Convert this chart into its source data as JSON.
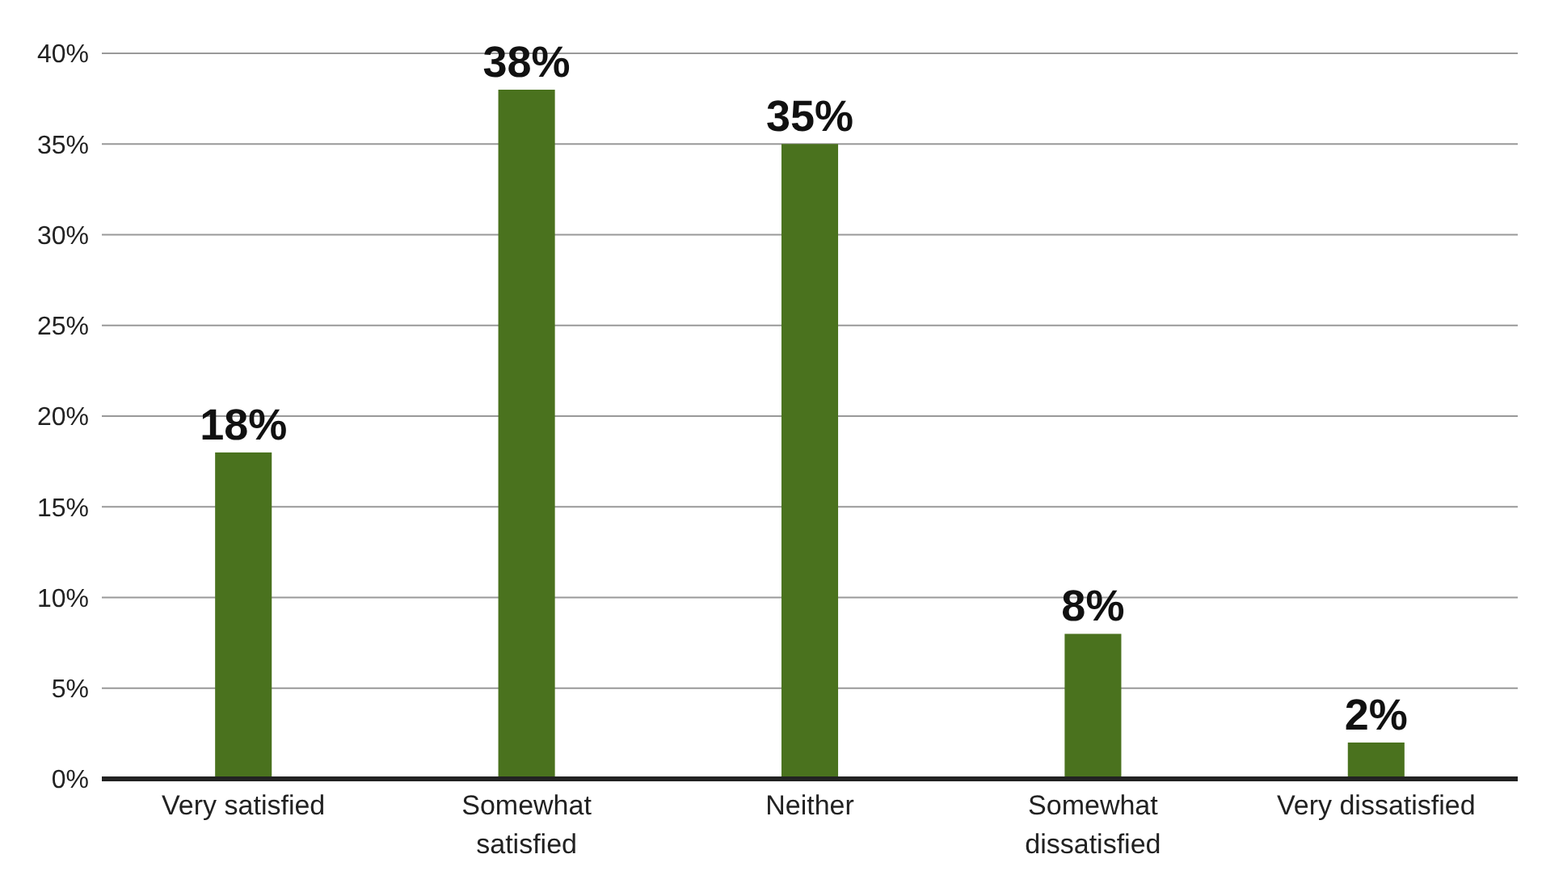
{
  "chart_data": {
    "type": "bar",
    "categories": [
      "Very satisfied",
      "Somewhat satisfied",
      "Neither",
      "Somewhat dissatisfied",
      "Very dissatisfied"
    ],
    "values": [
      18,
      38,
      35,
      8,
      2
    ],
    "color": "#4a721e",
    "value_labels": [
      "18%",
      "38%",
      "35%",
      "8%",
      "2%"
    ],
    "ylim": [
      0,
      40
    ],
    "yticks": [
      {
        "value": 0,
        "label": "0%"
      },
      {
        "value": 5,
        "label": "5%"
      },
      {
        "value": 10,
        "label": "10%"
      },
      {
        "value": 15,
        "label": "15%"
      },
      {
        "value": 20,
        "label": "20%"
      },
      {
        "value": 25,
        "label": "25%"
      },
      {
        "value": 30,
        "label": "30%"
      },
      {
        "value": 35,
        "label": "35%"
      },
      {
        "value": 40,
        "label": "40%"
      }
    ],
    "grid": "y"
  }
}
